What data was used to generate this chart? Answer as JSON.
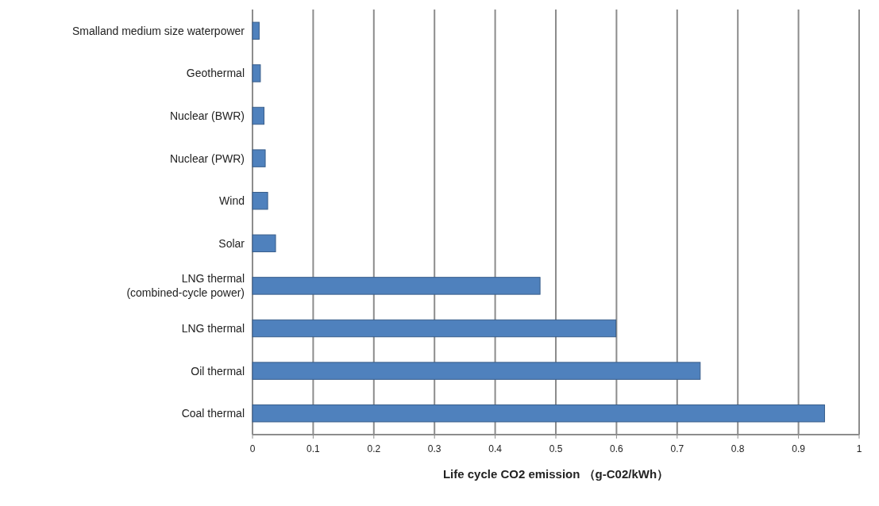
{
  "chart_data": {
    "type": "bar",
    "orientation": "horizontal",
    "categories": [
      "Smalland medium size waterpower",
      "Geothermal",
      "Nuclear (BWR)",
      "Nuclear (PWR)",
      "Wind",
      "Solar",
      "LNG thermal\n(combined-cycle power)",
      "LNG thermal",
      "Oil thermal",
      "Coal thermal"
    ],
    "values": [
      0.011,
      0.013,
      0.019,
      0.021,
      0.025,
      0.038,
      0.474,
      0.599,
      0.738,
      0.943
    ],
    "color": "#4f81bd",
    "xlabel": "Life cycle CO2 emission （g-C02/kWh）",
    "xlim": [
      0,
      1
    ],
    "xticks": [
      0,
      0.1,
      0.2,
      0.3,
      0.4,
      0.5,
      0.6,
      0.7,
      0.8,
      0.9,
      1
    ],
    "grid": "x"
  }
}
